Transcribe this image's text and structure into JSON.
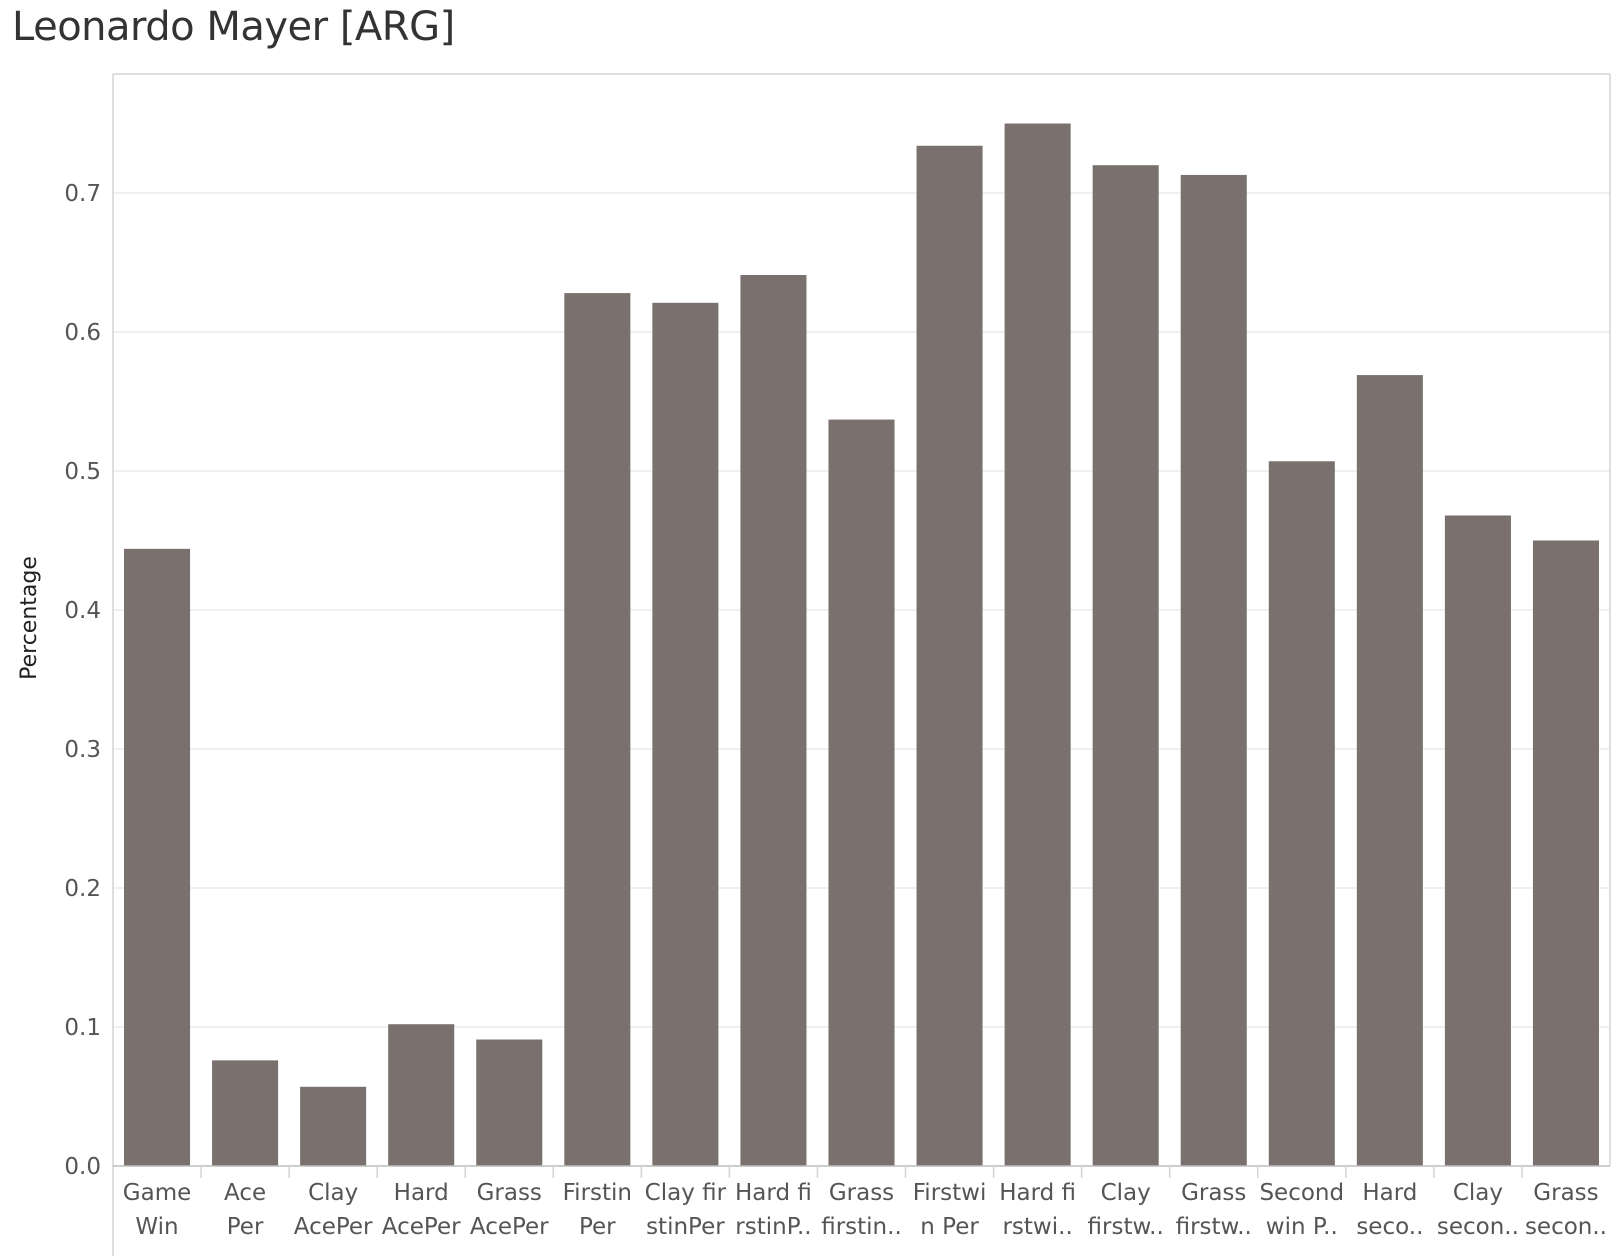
{
  "chart_data": {
    "type": "bar",
    "title": "Leonardo Mayer [ARG]",
    "ylabel": "Percentage",
    "xlabel": "",
    "ylim": [
      0,
      0.78
    ],
    "yticks": [
      "0.0",
      "0.1",
      "0.2",
      "0.3",
      "0.4",
      "0.5",
      "0.6",
      "0.7"
    ],
    "grid": true,
    "bar_color": "#7a706d",
    "categories": [
      [
        "Game",
        "Win"
      ],
      [
        "Ace",
        "Per"
      ],
      [
        "Clay",
        "AcePer"
      ],
      [
        "Hard",
        "AcePer"
      ],
      [
        "Grass",
        "AcePer"
      ],
      [
        "Firstin",
        "Per"
      ],
      [
        "Clay fir",
        "stinPer"
      ],
      [
        "Hard fi",
        "rstinP.."
      ],
      [
        "Grass",
        "firstin.."
      ],
      [
        "Firstwi",
        "n Per"
      ],
      [
        "Hard fi",
        "rstwi.."
      ],
      [
        "Clay",
        "firstw.."
      ],
      [
        "Grass",
        "firstw.."
      ],
      [
        "Second",
        "win P.."
      ],
      [
        "Hard",
        "seco.."
      ],
      [
        "Clay",
        "secon.."
      ],
      [
        "Grass",
        "secon.."
      ]
    ],
    "values": [
      0.444,
      0.076,
      0.057,
      0.102,
      0.091,
      0.628,
      0.621,
      0.641,
      0.537,
      0.734,
      0.75,
      0.72,
      0.713,
      0.507,
      0.569,
      0.468,
      0.45
    ]
  }
}
